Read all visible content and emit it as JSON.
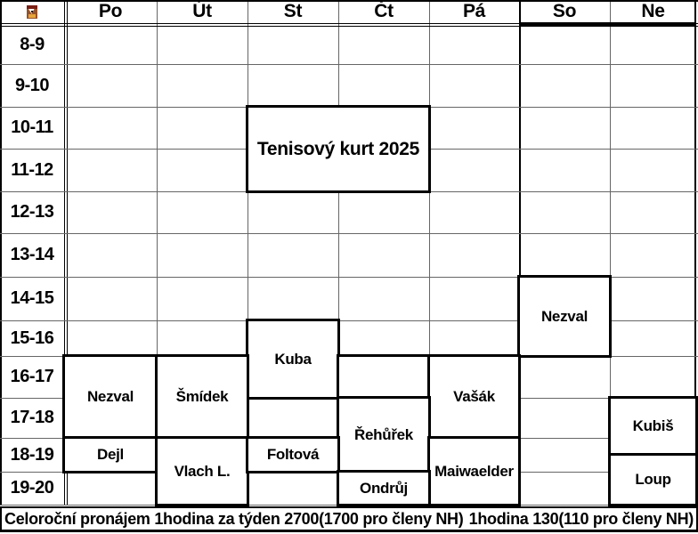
{
  "title": {
    "label": "Tenisový kurt 2025"
  },
  "days": [
    "Po",
    "Út",
    "St",
    "Čt",
    "Pá",
    "So",
    "Ne"
  ],
  "hours": [
    "8-9",
    "9-10",
    "10-11",
    "11-12",
    "12-13",
    "13-14",
    "14-15",
    "15-16",
    "16-17",
    "17-18",
    "18-19",
    "19-20"
  ],
  "events": [
    {
      "name": "Nezval",
      "day": "So",
      "from": 14,
      "to": 16
    },
    {
      "name": "Kuba",
      "day": "St",
      "from": 15,
      "to": 17
    },
    {
      "name": "Nezval",
      "day": "Po",
      "from": 16,
      "to": 18
    },
    {
      "name": "Šmídek",
      "day": "Út",
      "from": 16,
      "to": 18
    },
    {
      "name": "",
      "day": "Čt",
      "from": 16,
      "to": 17
    },
    {
      "name": "Vašák",
      "day": "Pá",
      "from": 16,
      "to": 18
    },
    {
      "name": "Řehůřek",
      "day": "Čt",
      "from": 17,
      "to": 19
    },
    {
      "name": "Kubiš",
      "day": "Ne",
      "from": 17,
      "to": 18.5
    },
    {
      "name": "Dejl",
      "day": "Po",
      "from": 18,
      "to": 19
    },
    {
      "name": "Vlach L.",
      "day": "Út",
      "from": 18,
      "to": 20
    },
    {
      "name": "Foltová",
      "day": "St",
      "from": 18,
      "to": 19
    },
    {
      "name": "Maiwaelder",
      "day": "Pá",
      "from": 18,
      "to": 20
    },
    {
      "name": "Loup",
      "day": "Ne",
      "from": 18.5,
      "to": 20
    },
    {
      "name": "Ondrůj",
      "day": "Čt",
      "from": 19,
      "to": 20
    }
  ],
  "footer": {
    "left": "Celoroční pronájem 1hodina za týden 2700(1700 pro členy NH)",
    "right": "1hodina 130(110 pro členy NH)"
  },
  "corner_icon": "club-logo-icon",
  "colors": {
    "border_black": "#000000",
    "grid_gray": "#666666",
    "background": "#ffffff",
    "text": "#000000",
    "logo_maroon": "#7a1f14",
    "logo_brown": "#96522a",
    "logo_orange": "#e7a43c"
  }
}
